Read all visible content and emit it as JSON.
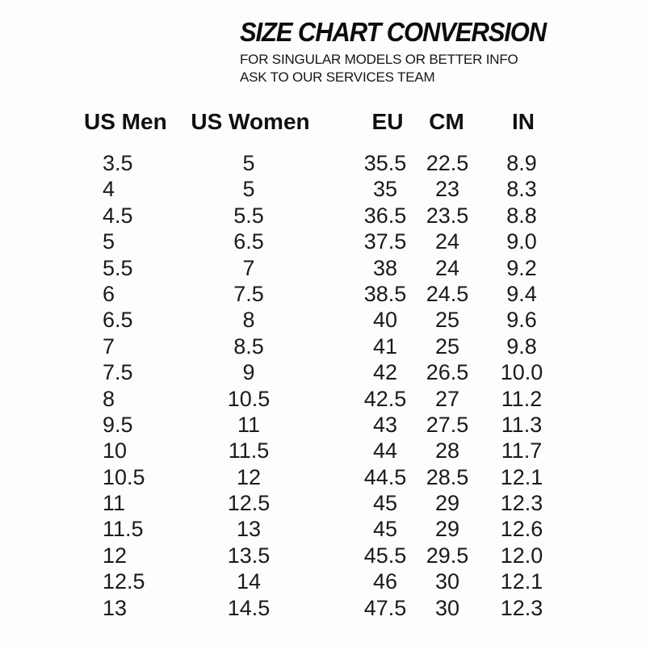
{
  "header": {
    "title": "SIZE CHART CONVERSION",
    "subtitle_line1": "FOR SINGULAR MODELS OR BETTER INFO",
    "subtitle_line2": "ASK TO OUR SERVICES TEAM"
  },
  "colors": {
    "background": "#fdfdfd",
    "title_text": "#0d0d0d",
    "body_text": "#1a1a1a"
  },
  "table": {
    "columns": [
      {
        "key": "us-men",
        "label": "US Men"
      },
      {
        "key": "us-women",
        "label": "US Women"
      },
      {
        "key": "eu",
        "label": "EU"
      },
      {
        "key": "cm",
        "label": "CM"
      },
      {
        "key": "in",
        "label": "IN"
      }
    ],
    "rows": [
      [
        "3.5",
        "5",
        "35.5",
        "22.5",
        "8.9"
      ],
      [
        "4",
        "5",
        "35",
        "23",
        "8.3"
      ],
      [
        "4.5",
        "5.5",
        "36.5",
        "23.5",
        "8.8"
      ],
      [
        "5",
        "6.5",
        "37.5",
        "24",
        "9.0"
      ],
      [
        "5.5",
        "7",
        "38",
        "24",
        "9.2"
      ],
      [
        "6",
        "7.5",
        "38.5",
        "24.5",
        "9.4"
      ],
      [
        "6.5",
        "8",
        "40",
        "25",
        "9.6"
      ],
      [
        "7",
        "8.5",
        "41",
        "25",
        "9.8"
      ],
      [
        "7.5",
        "9",
        "42",
        "26.5",
        "10.0"
      ],
      [
        "8",
        "10.5",
        "42.5",
        "27",
        "11.2"
      ],
      [
        "9.5",
        "11",
        "43",
        "27.5",
        "11.3"
      ],
      [
        "10",
        "11.5",
        "44",
        "28",
        "11.7"
      ],
      [
        "10.5",
        "12",
        "44.5",
        "28.5",
        "12.1"
      ],
      [
        "11",
        "12.5",
        "45",
        "29",
        "12.3"
      ],
      [
        "11.5",
        "13",
        "45",
        "29",
        "12.6"
      ],
      [
        "12",
        "13.5",
        "45.5",
        "29.5",
        "12.0"
      ],
      [
        "12.5",
        "14",
        "46",
        "30",
        "12.1"
      ],
      [
        "13",
        "14.5",
        "47.5",
        "30",
        "12.3"
      ]
    ]
  }
}
